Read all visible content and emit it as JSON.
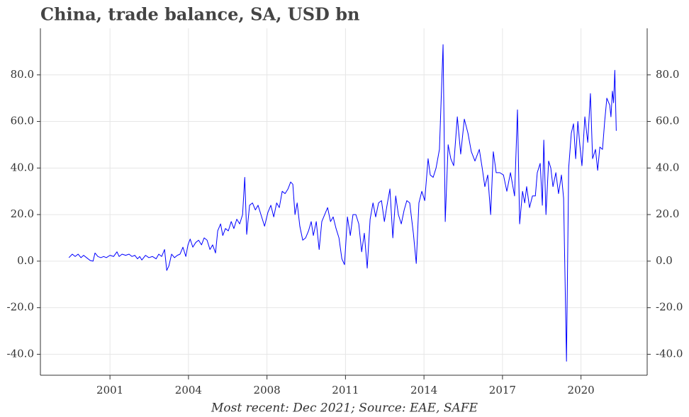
{
  "chart_data": {
    "type": "line",
    "title": "China, trade balance, SA, USD bn",
    "footnote": "Most recent: Dec 2021; Source: EAE, SAFE",
    "color": "#0000ff",
    "grid": true,
    "xlim": [
      1998.12,
      2023.24
    ],
    "xticks": [
      2001,
      {
        "value": 2004.25,
        "label": "2004"
      },
      {
        "value": 2007.5,
        "label": "2008"
      },
      {
        "value": 2010.75,
        "label": "2011"
      },
      2014,
      {
        "value": 2017.25,
        "label": "2017"
      },
      {
        "value": 2020.5,
        "label": "2020"
      }
    ],
    "ylim": [
      -49,
      100
    ],
    "yticks": [
      {
        "value": -40,
        "label": "-40.0"
      },
      {
        "value": -20,
        "label": "-20.0"
      },
      {
        "value": 0,
        "label": "0.0"
      },
      {
        "value": 20,
        "label": "20.0"
      },
      {
        "value": 40,
        "label": "40.0"
      },
      {
        "value": 60,
        "label": "60.0"
      },
      {
        "value": 80,
        "label": "80.0"
      }
    ],
    "x": [
      1999.3,
      1999.44,
      1999.56,
      1999.68,
      1999.8,
      1999.91,
      2000.03,
      2000.18,
      2000.3,
      2000.38,
      2000.5,
      2000.62,
      2000.74,
      2000.85,
      2001.0,
      2001.15,
      2001.29,
      2001.38,
      2001.5,
      2001.65,
      2001.79,
      2001.91,
      2002.03,
      2002.14,
      2002.23,
      2002.32,
      2002.47,
      2002.61,
      2002.76,
      2002.91,
      2003.02,
      2003.14,
      2003.26,
      2003.35,
      2003.44,
      2003.55,
      2003.67,
      2003.79,
      2003.9,
      2004.02,
      2004.14,
      2004.23,
      2004.32,
      2004.43,
      2004.55,
      2004.67,
      2004.79,
      2004.9,
      2005.02,
      2005.14,
      2005.25,
      2005.37,
      2005.46,
      2005.58,
      2005.67,
      2005.78,
      2005.9,
      2006.02,
      2006.13,
      2006.25,
      2006.37,
      2006.49,
      2006.58,
      2006.66,
      2006.78,
      2006.9,
      2007.02,
      2007.13,
      2007.25,
      2007.4,
      2007.54,
      2007.66,
      2007.78,
      2007.9,
      2008.01,
      2008.13,
      2008.25,
      2008.37,
      2008.48,
      2008.57,
      2008.66,
      2008.75,
      2008.86,
      2008.98,
      2009.1,
      2009.22,
      2009.33,
      2009.42,
      2009.54,
      2009.66,
      2009.77,
      2009.89,
      2010.01,
      2010.13,
      2010.24,
      2010.36,
      2010.48,
      2010.6,
      2010.71,
      2010.83,
      2010.95,
      2011.06,
      2011.18,
      2011.3,
      2011.42,
      2011.53,
      2011.65,
      2011.77,
      2011.89,
      2012.0,
      2012.12,
      2012.24,
      2012.36,
      2012.47,
      2012.59,
      2012.71,
      2012.83,
      2012.94,
      2013.06,
      2013.18,
      2013.29,
      2013.41,
      2013.56,
      2013.68,
      2013.79,
      2013.91,
      2014.03,
      2014.17,
      2014.26,
      2014.38,
      2014.5,
      2014.64,
      2014.79,
      2014.88,
      2015.0,
      2015.11,
      2015.23,
      2015.38,
      2015.52,
      2015.67,
      2015.82,
      2015.96,
      2016.11,
      2016.29,
      2016.41,
      2016.52,
      2016.64,
      2016.76,
      2016.87,
      2016.99,
      2017.14,
      2017.29,
      2017.43,
      2017.58,
      2017.75,
      2017.87,
      2017.96,
      2018.08,
      2018.17,
      2018.25,
      2018.37,
      2018.49,
      2018.61,
      2018.69,
      2018.81,
      2018.9,
      2018.96,
      2019.05,
      2019.16,
      2019.25,
      2019.34,
      2019.46,
      2019.57,
      2019.69,
      2019.78,
      2019.9,
      2019.99,
      2020.1,
      2020.19,
      2020.28,
      2020.37,
      2020.45,
      2020.54,
      2020.66,
      2020.78,
      2020.89,
      2020.98,
      2021.1,
      2021.19,
      2021.28,
      2021.39,
      2021.48,
      2021.57,
      2021.69,
      2021.74,
      2021.8,
      2021.85,
      2021.9,
      2021.96
    ],
    "values": [
      1.5,
      3,
      2,
      3,
      1.5,
      2.5,
      1.5,
      0.3,
      0,
      3.5,
      2,
      1.5,
      2,
      1.5,
      2.5,
      2,
      4,
      2,
      3,
      2.5,
      3,
      2,
      2.5,
      1,
      2,
      0.5,
      2.5,
      1.5,
      2,
      1,
      3,
      2,
      5,
      -4,
      -2,
      3,
      1.5,
      2.5,
      3,
      6,
      2,
      7,
      9.5,
      6,
      8,
      9,
      7,
      10,
      9,
      5,
      7,
      3.5,
      13,
      16,
      11,
      14,
      13,
      17,
      14,
      18,
      16,
      20,
      36,
      11.5,
      24,
      25,
      22,
      24,
      20,
      15,
      21,
      24,
      19,
      25,
      23,
      30,
      29,
      31,
      34,
      33,
      20,
      25,
      15,
      9,
      10,
      13,
      17,
      11,
      17,
      5,
      17,
      20,
      23,
      17,
      19,
      14,
      10,
      1,
      -1.5,
      19,
      11,
      20,
      20,
      16,
      4,
      12,
      -3,
      18,
      25,
      19,
      25,
      26,
      17,
      24,
      31,
      10,
      28,
      20,
      16,
      22,
      26,
      25,
      12,
      -1,
      25,
      30,
      26,
      44,
      37,
      36,
      40,
      48,
      93,
      17,
      50,
      44,
      41,
      62,
      46,
      61,
      55,
      47,
      43,
      48,
      40,
      32,
      37,
      20,
      47,
      38,
      38,
      37,
      30,
      38,
      28,
      65,
      16,
      30,
      25,
      32,
      23,
      28,
      28,
      38,
      42,
      24,
      52,
      20,
      43,
      40,
      32,
      38,
      29,
      37,
      27,
      -43,
      40,
      55,
      59,
      44,
      60,
      50,
      41,
      62,
      51,
      72,
      44,
      48,
      39,
      49,
      48,
      60,
      70,
      67,
      62,
      73,
      68,
      82,
      56
    ]
  }
}
